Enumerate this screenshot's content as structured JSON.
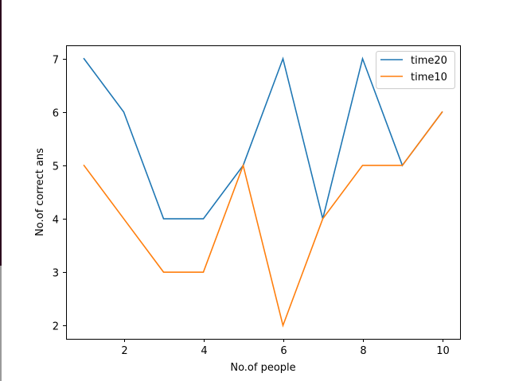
{
  "chart_data": {
    "type": "line",
    "title": "",
    "xlabel": "No.of people",
    "ylabel": "No.of correct ans",
    "x": [
      1,
      2,
      3,
      4,
      5,
      6,
      7,
      8,
      9,
      10
    ],
    "xlim": [
      0.55,
      10.45
    ],
    "ylim": [
      1.75,
      7.25
    ],
    "xticks": [
      2,
      4,
      6,
      8,
      10
    ],
    "yticks": [
      2,
      3,
      4,
      5,
      6,
      7
    ],
    "grid": false,
    "legend_position": "top-right",
    "series": [
      {
        "name": "time20",
        "color": "#1f77b4",
        "values": [
          7,
          6,
          4,
          4,
          5,
          7,
          4,
          7,
          5,
          6
        ]
      },
      {
        "name": "time10",
        "color": "#ff7f0e",
        "values": [
          5,
          4,
          3,
          3,
          5,
          2,
          4,
          5,
          5,
          6
        ]
      }
    ]
  }
}
